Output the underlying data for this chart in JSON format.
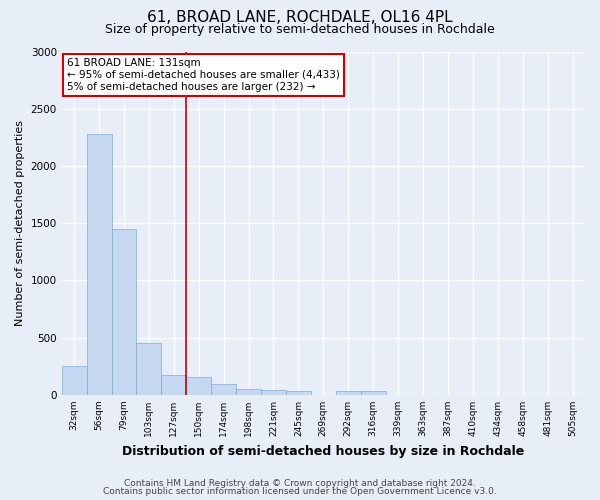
{
  "title1": "61, BROAD LANE, ROCHDALE, OL16 4PL",
  "title2": "Size of property relative to semi-detached houses in Rochdale",
  "xlabel": "Distribution of semi-detached houses by size in Rochdale",
  "ylabel": "Number of semi-detached properties",
  "footnote1": "Contains HM Land Registry data © Crown copyright and database right 2024.",
  "footnote2": "Contains public sector information licensed under the Open Government Licence v3.0.",
  "annotation_line1": "61 BROAD LANE: 131sqm",
  "annotation_line2": "← 95% of semi-detached houses are smaller (4,433)",
  "annotation_line3": "5% of semi-detached houses are larger (232) →",
  "categories": [
    "32sqm",
    "56sqm",
    "79sqm",
    "103sqm",
    "127sqm",
    "150sqm",
    "174sqm",
    "198sqm",
    "221sqm",
    "245sqm",
    "269sqm",
    "292sqm",
    "316sqm",
    "339sqm",
    "363sqm",
    "387sqm",
    "410sqm",
    "434sqm",
    "458sqm",
    "481sqm",
    "505sqm"
  ],
  "bar_values": [
    250,
    2280,
    1450,
    450,
    175,
    155,
    95,
    50,
    40,
    35,
    0,
    30,
    30,
    0,
    0,
    0,
    0,
    0,
    0,
    0,
    0
  ],
  "bar_color": "#c5d8f0",
  "bar_edge_color": "#7badd4",
  "red_line_index": 5,
  "ylim": [
    0,
    3000
  ],
  "yticks": [
    0,
    500,
    1000,
    1500,
    2000,
    2500,
    3000
  ],
  "bg_color": "#e8eef8",
  "grid_color": "#ffffff",
  "annotation_box_color": "#ffffff",
  "annotation_box_edge_color": "#cc0000",
  "title1_fontsize": 11,
  "title2_fontsize": 9,
  "axis_label_fontsize": 8,
  "tick_fontsize": 6.5,
  "footnote_fontsize": 6.5
}
